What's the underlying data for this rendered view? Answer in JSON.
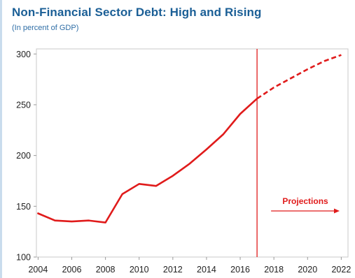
{
  "chart_data": {
    "type": "line",
    "title": "Non-Financial Sector Debt: High and Rising",
    "subtitle": "(In percent of GDP)",
    "xlabel": "",
    "ylabel": "",
    "xlim": [
      2003.9,
      2022.4
    ],
    "ylim": [
      100,
      305
    ],
    "x_ticks": [
      2004,
      2006,
      2008,
      2010,
      2012,
      2014,
      2016,
      2018,
      2020,
      2022
    ],
    "y_ticks": [
      100,
      150,
      200,
      250,
      300
    ],
    "grid": false,
    "series": [
      {
        "color": "#e01b1b",
        "historical": {
          "x": [
            2004,
            2005,
            2006,
            2007,
            2008,
            2009,
            2010,
            2011,
            2012,
            2013,
            2014,
            2015,
            2016,
            2017
          ],
          "y": [
            143,
            136,
            135,
            136,
            134,
            162,
            172,
            170,
            180,
            192,
            206,
            221,
            241,
            256
          ]
        },
        "projection": {
          "x": [
            2017,
            2018,
            2019,
            2020,
            2021,
            2022
          ],
          "y": [
            256,
            267,
            276,
            285,
            293,
            299
          ]
        }
      }
    ],
    "vertical_line": {
      "x": 2017,
      "color": "#e01b1b"
    },
    "annotation": {
      "text": "Projections",
      "color": "#e01b1b"
    }
  }
}
